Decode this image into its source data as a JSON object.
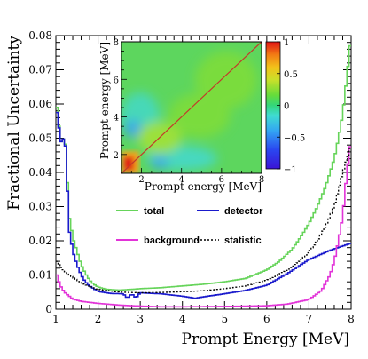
{
  "chart_data": [
    {
      "type": "line",
      "xlabel": "Prompt Energy [MeV]",
      "ylabel": "Fractional Uncertainty",
      "xlim": [
        1,
        8
      ],
      "ylim": [
        0,
        0.08
      ],
      "x_ticks": [
        "1",
        "2",
        "3",
        "4",
        "5",
        "6",
        "7",
        "8"
      ],
      "y_ticks": [
        "0",
        "0.01",
        "0.02",
        "0.03",
        "0.04",
        "0.05",
        "0.06",
        "0.07",
        "0.08"
      ],
      "step": true,
      "legend_placement": "center-right",
      "series": [
        {
          "name": "total",
          "color": "#66d45a",
          "style": "solid",
          "points": [
            [
              1.0,
              0.06
            ],
            [
              1.05,
              0.058
            ],
            [
              1.1,
              0.049
            ],
            [
              1.15,
              0.049
            ],
            [
              1.2,
              0.0505
            ],
            [
              1.25,
              0.046
            ],
            [
              1.3,
              0.028
            ],
            [
              1.35,
              0.025
            ],
            [
              1.4,
              0.021
            ],
            [
              1.5,
              0.017
            ],
            [
              1.6,
              0.013
            ],
            [
              1.7,
              0.0105
            ],
            [
              1.8,
              0.0085
            ],
            [
              1.9,
              0.0073
            ],
            [
              2.0,
              0.0065
            ],
            [
              2.2,
              0.0058
            ],
            [
              2.5,
              0.0056
            ],
            [
              2.8,
              0.0058
            ],
            [
              3.0,
              0.006
            ],
            [
              3.5,
              0.0063
            ],
            [
              4.0,
              0.0068
            ],
            [
              4.5,
              0.0073
            ],
            [
              5.0,
              0.008
            ],
            [
              5.5,
              0.009
            ],
            [
              6.0,
              0.0115
            ],
            [
              6.3,
              0.014
            ],
            [
              6.6,
              0.0175
            ],
            [
              6.8,
              0.021
            ],
            [
              7.0,
              0.025
            ],
            [
              7.2,
              0.03
            ],
            [
              7.4,
              0.036
            ],
            [
              7.5,
              0.04
            ],
            [
              7.6,
              0.044
            ],
            [
              7.7,
              0.05
            ],
            [
              7.8,
              0.057
            ],
            [
              7.9,
              0.068
            ],
            [
              8.0,
              0.08
            ]
          ]
        },
        {
          "name": "detector",
          "color": "#1a1acc",
          "style": "solid",
          "points": [
            [
              1.0,
              0.058
            ],
            [
              1.05,
              0.057
            ],
            [
              1.1,
              0.049
            ],
            [
              1.15,
              0.049
            ],
            [
              1.2,
              0.0505
            ],
            [
              1.25,
              0.045
            ],
            [
              1.3,
              0.024
            ],
            [
              1.35,
              0.021
            ],
            [
              1.4,
              0.017
            ],
            [
              1.5,
              0.013
            ],
            [
              1.6,
              0.01
            ],
            [
              1.7,
              0.008
            ],
            [
              1.8,
              0.0068
            ],
            [
              1.9,
              0.006
            ],
            [
              2.0,
              0.0052
            ],
            [
              2.3,
              0.0046
            ],
            [
              2.6,
              0.0045
            ],
            [
              2.7,
              0.0032
            ],
            [
              2.8,
              0.0045
            ],
            [
              2.9,
              0.0033
            ],
            [
              3.0,
              0.0048
            ],
            [
              3.5,
              0.0045
            ],
            [
              4.0,
              0.0038
            ],
            [
              4.3,
              0.0032
            ],
            [
              4.6,
              0.0038
            ],
            [
              5.0,
              0.0045
            ],
            [
              5.5,
              0.0055
            ],
            [
              6.0,
              0.007
            ],
            [
              6.5,
              0.0105
            ],
            [
              7.0,
              0.0145
            ],
            [
              7.5,
              0.0172
            ],
            [
              8.0,
              0.0193
            ]
          ]
        },
        {
          "name": "background",
          "color": "#e233d8",
          "style": "solid",
          "points": [
            [
              1.0,
              0.011
            ],
            [
              1.1,
              0.007
            ],
            [
              1.2,
              0.005
            ],
            [
              1.4,
              0.003
            ],
            [
              1.6,
              0.0023
            ],
            [
              2.0,
              0.0017
            ],
            [
              2.5,
              0.0012
            ],
            [
              3.0,
              0.0009
            ],
            [
              3.5,
              0.0007
            ],
            [
              4.0,
              0.0007
            ],
            [
              5.0,
              0.0008
            ],
            [
              6.0,
              0.001
            ],
            [
              6.5,
              0.0015
            ],
            [
              7.0,
              0.0028
            ],
            [
              7.3,
              0.0055
            ],
            [
              7.5,
              0.01
            ],
            [
              7.6,
              0.014
            ],
            [
              7.7,
              0.02
            ],
            [
              7.8,
              0.027
            ],
            [
              7.9,
              0.04
            ],
            [
              8.0,
              0.05
            ]
          ]
        },
        {
          "name": "statistic",
          "color": "#000000",
          "style": "dotted",
          "points": [
            [
              1.0,
              0.0145
            ],
            [
              1.1,
              0.0125
            ],
            [
              1.2,
              0.0112
            ],
            [
              1.4,
              0.0093
            ],
            [
              1.6,
              0.0078
            ],
            [
              1.8,
              0.0066
            ],
            [
              2.0,
              0.0058
            ],
            [
              2.5,
              0.005
            ],
            [
              3.0,
              0.0048
            ],
            [
              3.5,
              0.0049
            ],
            [
              4.0,
              0.0051
            ],
            [
              4.5,
              0.0054
            ],
            [
              5.0,
              0.006
            ],
            [
              5.5,
              0.0068
            ],
            [
              6.0,
              0.0085
            ],
            [
              6.5,
              0.0115
            ],
            [
              6.8,
              0.0142
            ],
            [
              7.0,
              0.0168
            ],
            [
              7.2,
              0.02
            ],
            [
              7.4,
              0.0245
            ],
            [
              7.6,
              0.03
            ],
            [
              7.8,
              0.04
            ],
            [
              8.0,
              0.048
            ]
          ]
        }
      ]
    },
    {
      "type": "heatmap",
      "xlabel": "Prompt energy [MeV]",
      "ylabel": "Prompt energy [MeV]",
      "xlim": [
        1,
        8
      ],
      "ylim": [
        1,
        8
      ],
      "x_ticks": [
        "2",
        "4",
        "6",
        "8"
      ],
      "y_ticks": [
        "2",
        "4",
        "6",
        "8"
      ],
      "colorbar": {
        "range": [
          -1,
          1
        ],
        "ticks": [
          "1",
          "0.5",
          "0",
          "−0.5",
          "−1"
        ]
      },
      "diagonal_line_color": "#c23a2a"
    }
  ]
}
